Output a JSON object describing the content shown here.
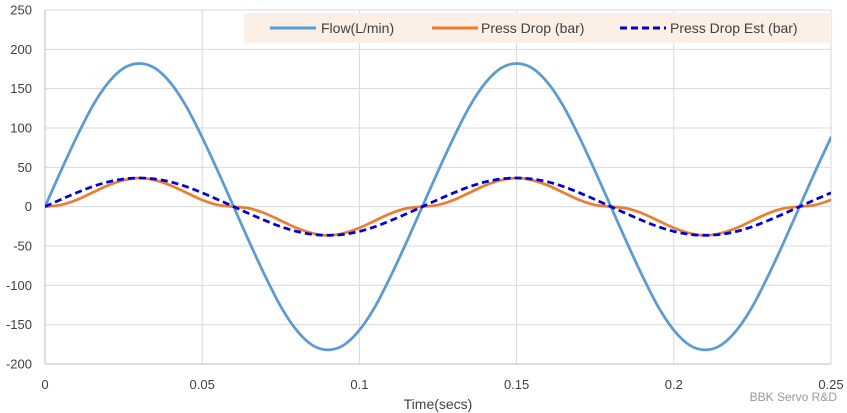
{
  "chart_data": {
    "type": "line",
    "title": "",
    "xlabel": "Time(secs)",
    "ylabel": "",
    "xlim": [
      0,
      0.25
    ],
    "ylim": [
      -200,
      250
    ],
    "x_ticks": [
      0,
      0.05,
      0.1,
      0.15,
      0.2,
      0.25
    ],
    "x_tick_labels": [
      "0",
      "0.05",
      "0.1",
      "0.15",
      "0.2",
      "0.25"
    ],
    "y_ticks": [
      -200,
      -150,
      -100,
      -50,
      0,
      50,
      100,
      150,
      200,
      250
    ],
    "y_tick_labels": [
      "-200",
      "-150",
      "-100",
      "-50",
      "0",
      "50",
      "100",
      "150",
      "200",
      "250"
    ],
    "grid": true,
    "legend_position": "top-right",
    "x": [
      0,
      0.005,
      0.01,
      0.015,
      0.02,
      0.025,
      0.03,
      0.035,
      0.04,
      0.045,
      0.05,
      0.055,
      0.06,
      0.065,
      0.07,
      0.075,
      0.08,
      0.085,
      0.09,
      0.095,
      0.1,
      0.105,
      0.11,
      0.115,
      0.12,
      0.125,
      0.13,
      0.135,
      0.14,
      0.145,
      0.15,
      0.155,
      0.16,
      0.165,
      0.17,
      0.175,
      0.18,
      0.185,
      0.19,
      0.195,
      0.2,
      0.205,
      0.21,
      0.215,
      0.22,
      0.225,
      0.23,
      0.235,
      0.24,
      0.245,
      0.25
    ],
    "series": [
      {
        "name": "Flow(L/min)",
        "color": "#5b9bd5",
        "dash": "solid",
        "values": [
          0,
          45,
          88,
          127,
          157,
          176,
          182,
          176,
          157,
          127,
          88,
          45,
          0,
          -45,
          -88,
          -127,
          -157,
          -176,
          -182,
          -176,
          -157,
          -127,
          -88,
          -45,
          0,
          45,
          88,
          127,
          157,
          176,
          182,
          176,
          157,
          127,
          88,
          45,
          0,
          -45,
          -88,
          -127,
          -157,
          -176,
          -182,
          -176,
          -157,
          -127,
          -88,
          -45,
          0,
          45,
          88
        ]
      },
      {
        "name": "Press Drop (bar)",
        "color": "#ed7d31",
        "dash": "solid",
        "values": [
          0,
          2.2,
          8.5,
          17.7,
          27.0,
          33.7,
          36.5,
          33.7,
          27.0,
          17.7,
          8.5,
          2.2,
          0,
          -2.2,
          -8.5,
          -17.7,
          -27.0,
          -33.7,
          -36.5,
          -33.7,
          -27.0,
          -17.7,
          -8.5,
          -2.2,
          0,
          2.2,
          8.5,
          17.7,
          27.0,
          33.7,
          36.5,
          33.7,
          27.0,
          17.7,
          8.5,
          2.2,
          0,
          -2.2,
          -8.5,
          -17.7,
          -27.0,
          -33.7,
          -36.5,
          -33.7,
          -27.0,
          -17.7,
          -8.5,
          -2.2,
          0,
          2.2,
          8.5
        ]
      },
      {
        "name": "Press Drop Est (bar)",
        "color": "#0000dd",
        "dash": "dashed",
        "values": [
          0,
          9.0,
          17.6,
          25.4,
          31.4,
          35.2,
          36.4,
          35.2,
          31.4,
          25.4,
          17.6,
          9.0,
          0,
          -9.0,
          -17.6,
          -25.4,
          -31.4,
          -35.2,
          -36.4,
          -35.2,
          -31.4,
          -25.4,
          -17.6,
          -9.0,
          0,
          9.0,
          17.6,
          25.4,
          31.4,
          35.2,
          36.4,
          35.2,
          31.4,
          25.4,
          17.6,
          9.0,
          0,
          -9.0,
          -17.6,
          -25.4,
          -31.4,
          -35.2,
          -36.4,
          -35.2,
          -31.4,
          -25.4,
          -17.6,
          -9.0,
          0,
          9.0,
          17.6
        ]
      }
    ],
    "annotations": [
      "BBK Servo R&D"
    ]
  }
}
